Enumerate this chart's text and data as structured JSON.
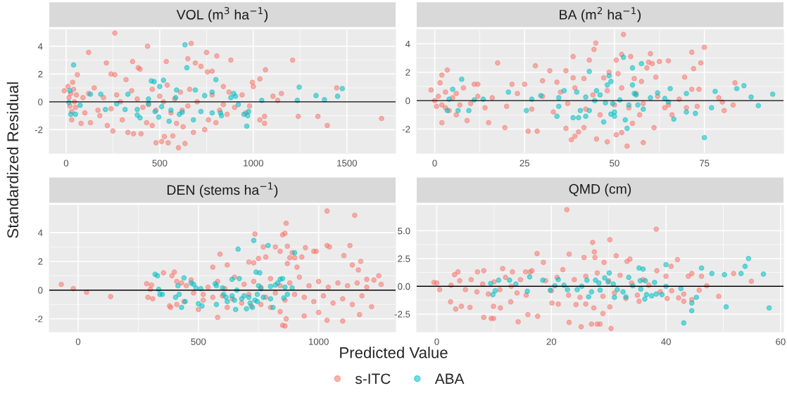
{
  "chart_data": [
    {
      "type": "scatter",
      "title": "VOL (m$^{3}$ ha$^{−1}$)",
      "ylabel": "Standardized Residual",
      "legend": "bottom",
      "grid": true,
      "marker": "circle",
      "xlim": [
        -90,
        1760
      ],
      "ylim": [
        -3.7,
        5.2
      ],
      "xticks": [
        0,
        500,
        1000,
        1500
      ],
      "yticks": [
        -2,
        0,
        2,
        4
      ],
      "ref_lines": [
        {
          "axis": "y",
          "value": 0,
          "color": "#000000"
        }
      ],
      "series": [
        {
          "name": "s-ITC",
          "color": "#f8766d",
          "x": [
            260,
            435,
            668,
            120,
            750,
            805,
            880,
            1210,
            535,
            355,
            650,
            690,
            720,
            1065,
            385,
            395,
            215,
            60,
            240,
            260,
            755,
            780,
            1035,
            995,
            1000,
            1240,
            1345,
            1395,
            1685,
            1445,
            1105,
            1150,
            1130,
            1060,
            1060,
            1035,
            980,
            840,
            870,
            600,
            635,
            480,
            510,
            545,
            570,
            525,
            250,
            330,
            360,
            400,
            460,
            220,
            130,
            80,
            30,
            740,
            680,
            625,
            590,
            430,
            300,
            180,
            200,
            150,
            170,
            270,
            320,
            350,
            410,
            460,
            500,
            540,
            560,
            610,
            650,
            700,
            780,
            820,
            860,
            900,
            940,
            960,
            15,
            20,
            25,
            30,
            40,
            45,
            10,
            50,
            35,
            55,
            -10,
            90,
            100,
            120,
            240,
            290,
            380,
            440,
            480,
            520,
            580,
            620,
            660,
            720,
            760,
            800,
            840
          ],
          "values": [
            4.95,
            4.0,
            4.2,
            3.55,
            3.55,
            3.3,
            3.0,
            3.0,
            2.9,
            2.9,
            3.1,
            2.8,
            2.55,
            2.3,
            2.45,
            2.35,
            2.8,
            1.95,
            2.0,
            1.95,
            2.15,
            2.2,
            1.65,
            1.4,
            1.1,
            -1.05,
            -1.05,
            -1.7,
            -1.2,
            1.0,
            0.4,
            0.6,
            0.1,
            -1.55,
            -1.05,
            -1.3,
            -0.3,
            1.1,
            0.7,
            -3.3,
            -3.0,
            -2.95,
            -2.85,
            -2.95,
            -2.45,
            -2.5,
            -2.1,
            -2.2,
            -2.3,
            -2.3,
            -1.7,
            -1.7,
            -1.5,
            -1.55,
            -1.3,
            -2.0,
            -2.2,
            -1.8,
            -1.55,
            -1.5,
            -1.3,
            -1.0,
            0.3,
            1.0,
            -0.6,
            0.5,
            1.6,
            0.8,
            -0.4,
            0.9,
            0.4,
            1.2,
            -0.8,
            0.7,
            -0.3,
            0.0,
            0.5,
            -0.6,
            -0.9,
            -0.4,
            0.5,
            -0.8,
            0.3,
            -0.3,
            0.6,
            -0.7,
            0.9,
            0.0,
            1.1,
            -0.4,
            1.4,
            0.5,
            0.8,
            0.3,
            -0.8,
            0.6,
            -0.5,
            0.0,
            0.2,
            -0.2,
            -0.6,
            0.0,
            0.2,
            -0.6,
            0.9,
            null,
            -1.3,
            -1.5,
            -0.2
          ]
        },
        {
          "name": "ABA",
          "color": "#00bfc4",
          "x": [
            40,
            635,
            645,
            520,
            455,
            470,
            500,
            800,
            1245,
            1475,
            1335,
            1450,
            1380,
            1235,
            1045,
            895,
            880,
            905,
            920,
            975,
            970,
            965,
            950,
            780,
            740,
            690,
            590,
            585,
            440,
            330,
            130,
            185,
            20,
            25,
            50,
            75,
            15,
            210,
            315,
            380,
            395,
            475,
            495,
            550,
            560,
            605,
            620,
            680,
            720,
            780,
            830,
            825,
            270,
            380,
            440,
            510
          ],
          "values": [
            2.65,
            4.1,
            2.45,
            1.55,
            1.5,
            1.45,
            1.1,
            1.6,
            1.05,
            0.95,
            0.45,
            0.4,
            0.15,
            0.1,
            0.1,
            0.6,
            0.3,
            0.4,
            -0.2,
            -0.7,
            -1.0,
            -1.75,
            -0.9,
            0.7,
            0.45,
            0.85,
            0.85,
            0.3,
            0.2,
            0.55,
            0.55,
            0.55,
            0.8,
            -0.9,
            -0.9,
            -0.25,
            -0.05,
            -0.55,
            -0.55,
            -0.95,
            -1.15,
            -0.7,
            -1.1,
            -1.4,
            -0.6,
            -0.9,
            -0.75,
            -1.3,
            -0.7,
            -0.8,
            -1.0,
            -0.8,
            -0.15,
            -0.55,
            -0.15,
            -0.35
          ]
        }
      ]
    },
    {
      "type": "scatter",
      "title": "BA (m$^{2}$ ha$^{−1}$)",
      "grid": true,
      "marker": "circle",
      "xlim": [
        -5,
        97
      ],
      "ylim": [
        -3.7,
        5.0
      ],
      "xticks": [
        0,
        25,
        50,
        75
      ],
      "yticks": [
        -2,
        0,
        2,
        4
      ],
      "ref_lines": [
        {
          "axis": "y",
          "value": 0,
          "color": "#000000"
        }
      ],
      "series": [
        {
          "name": "s-ITC",
          "color": "#f8766d",
          "x": [
            52.5,
            44.8,
            44.3,
            38.5,
            54.5,
            52,
            43,
            50.5,
            60,
            71.5,
            75,
            74,
            72,
            59.5,
            62.5,
            65,
            60.5,
            59,
            17.5,
            28,
            32,
            36.5,
            3.5,
            2,
            8,
            11,
            12,
            21.5,
            25,
            30,
            34,
            38.5,
            41.5,
            47,
            48.5,
            51,
            55.5,
            57.5,
            61.5,
            69.5,
            71.5,
            73.5,
            83.5,
            79,
            80,
            80.5,
            83,
            68,
            70,
            73,
            66,
            64,
            61,
            58,
            53.5,
            48,
            45,
            38,
            39,
            40,
            36.5,
            41.5,
            50.5,
            52,
            55,
            57,
            26,
            28.5,
            19.5,
            15,
            2,
            9,
            6,
            1,
            2,
            3,
            4,
            5,
            1.5,
            6,
            7,
            10,
            12,
            14,
            16,
            20,
            23,
            27,
            30,
            33,
            35,
            37,
            39,
            42,
            44,
            46,
            48,
            50,
            52,
            54,
            56,
            58,
            62,
            65,
            0,
            -1,
            3,
            0.5
          ],
          "values": [
            4.65,
            4.05,
            3.6,
            3.1,
            3.1,
            3.25,
            2.85,
            2.85,
            3.3,
            3.4,
            3.75,
            2.65,
            2.25,
            2.7,
            2.75,
            2.8,
            2.6,
            2.3,
            2.65,
            2.45,
            2.1,
            2.1,
            2.15,
            1.8,
            0.9,
            1.15,
            1.15,
            1.15,
            1.15,
            1.4,
            1.3,
            1.6,
            1.55,
            1.6,
            2.0,
            1.9,
            1.55,
            1.35,
            1.65,
            1.65,
            0.8,
            0.8,
            1.25,
            0.2,
            -0.1,
            -0.7,
            -0.3,
            0.1,
            -0.5,
            -0.4,
            -1.0,
            -0.5,
            -1.9,
            -2.95,
            -3.2,
            -2.9,
            -2.7,
            -2.75,
            -2.5,
            -2.2,
            -1.95,
            -1.9,
            -2.4,
            -2.25,
            -1.6,
            -1.0,
            -2.15,
            -2.15,
            -1.9,
            -1.55,
            -1.55,
            -1.4,
            -1.0,
            0.3,
            -0.3,
            0.6,
            -0.7,
            0.2,
            1.25,
            0.5,
            -0.3,
            -0.2,
            0.3,
            -0.5,
            0.2,
            -0.4,
            0.5,
            -0.6,
            0.3,
            -0.8,
            0.6,
            -0.2,
            0.9,
            -0.6,
            0.4,
            -1.0,
            0.7,
            -0.3,
            0.9,
            -0.5,
            0.5,
            -0.2,
            0.3,
            -0.3,
            0.0,
            0.75,
            -0.5,
            -0.4
          ]
        },
        {
          "name": "ABA",
          "color": "#00bfc4",
          "x": [
            7.5,
            5,
            4,
            3.5,
            6.5,
            9.5,
            11,
            13.5,
            20.5,
            27,
            29.5,
            25.5,
            34,
            34.5,
            34.5,
            36,
            38.5,
            40,
            39.5,
            40.5,
            43,
            42,
            42,
            43,
            45,
            44.5,
            46,
            47,
            47.5,
            48,
            48.5,
            49,
            49,
            49.5,
            50,
            50,
            51.5,
            52.5,
            53,
            53.5,
            54,
            55,
            55,
            55.5,
            56,
            56.5,
            57.5,
            58,
            60,
            62,
            64,
            65.5,
            66.5,
            70,
            70,
            72.5,
            75,
            77,
            78,
            84,
            86,
            88,
            90,
            94,
            65
          ],
          "values": [
            1.5,
            0.8,
            0.1,
            -0.7,
            -0.7,
            -0.7,
            0.05,
            0.1,
            0.6,
            0.1,
            0.35,
            -0.7,
            -1.1,
            0.2,
            -0.4,
            0.7,
            -1.2,
            -1.2,
            0.6,
            -0.7,
            2.05,
            0.25,
            -1.1,
            -0.7,
            0.7,
            0.0,
            0.4,
            -1.5,
            -0.15,
            1.1,
            1.75,
            1.35,
            -0.95,
            -0.2,
            -1.1,
            -0.8,
            0.05,
            3.05,
            -1.35,
            -1.95,
            -0.3,
            2.3,
            1.1,
            0.5,
            0.4,
            -0.3,
            2.6,
            -0.6,
            0.2,
            0.55,
            0.15,
            0.85,
            -1.3,
            0.5,
            -0.8,
            -0.9,
            -2.6,
            -0.5,
            0.65,
            0.85,
            1.05,
            0.25,
            -0.35,
            0.45,
            -0.1
          ]
        }
      ]
    },
    {
      "type": "scatter",
      "title": "DEN (stems ha$^{−1}$)",
      "xlabel": "Predicted Value",
      "grid": true,
      "marker": "circle",
      "xlim": [
        -120,
        1320
      ],
      "ylim": [
        -2.9,
        5.9
      ],
      "xticks": [
        0,
        500,
        1000
      ],
      "yticks": [
        -2,
        0,
        2,
        4
      ],
      "ref_lines": [
        {
          "axis": "y",
          "value": 0,
          "color": "#000000"
        }
      ],
      "series": [
        {
          "name": "s-ITC",
          "color": "#f8766d",
          "x": [
            -70,
            -20,
            35,
            135,
            285,
            300,
            305,
            290,
            310,
            355,
            390,
            400,
            410,
            380,
            385,
            410,
            440,
            500,
            520,
            560,
            590,
            620,
            580,
            620,
            735,
            710,
            730,
            750,
            770,
            780,
            820,
            840,
            850,
            860,
            865,
            870,
            870,
            880,
            890,
            900,
            910,
            945,
            930,
            980,
            990,
            1035,
            1035,
            1045,
            1105,
            1130,
            1150,
            1140,
            1175,
            1165,
            1200,
            1230,
            1250,
            1260,
            1220,
            1170,
            1100,
            1035,
            1000,
            940,
            850,
            860,
            865,
            840,
            800,
            760,
            720,
            680,
            640,
            600,
            560,
            520,
            480,
            450,
            430,
            470,
            540,
            580,
            610,
            650,
            690,
            710,
            730,
            760,
            780,
            800,
            820,
            840,
            860,
            880,
            900,
            920,
            940,
            960,
            980,
            1000,
            1020,
            1040,
            1060,
            1080,
            1100,
            1120,
            1140,
            1160,
            1180,
            1200
          ],
          "values": [
            0.4,
            0.1,
            -0.15,
            -0.45,
            0.45,
            0.05,
            0.35,
            -0.5,
            -0.6,
            1.2,
            1.0,
            1.25,
            0.6,
            -1.1,
            -1.2,
            -1.0,
            -0.8,
            -1.35,
            -0.7,
            1.6,
            2.5,
            1.75,
            -1.9,
            -1.2,
            3.9,
            1.95,
            1.9,
            2.2,
            3.0,
            2.3,
            3.0,
            2.7,
            3.85,
            3.95,
            4.65,
            3.05,
            1.85,
            2.25,
            2.6,
            2.25,
            1.6,
            2.95,
            2.3,
            2.7,
            2.7,
            5.5,
            3.1,
            3.0,
            2.4,
            3.1,
            5.2,
            1.75,
            2.0,
            1.4,
            0.75,
            0.7,
            1.0,
            0.4,
            -1.15,
            -1.7,
            -2.15,
            -2.1,
            -1.55,
            -1.8,
            -2.45,
            -2.5,
            -2.0,
            -1.5,
            -1.2,
            -1.0,
            -1.1,
            -0.9,
            -0.6,
            -0.4,
            -0.5,
            -0.3,
            -0.2,
            0.3,
            0.5,
            0.7,
            0.2,
            0.6,
            0.1,
            0.9,
            0.4,
            -0.3,
            0.6,
            0.2,
            -0.5,
            0.8,
            -0.2,
            0.3,
            -0.7,
            0.5,
            -0.3,
            0.9,
            -0.5,
            0.3,
            -0.8,
            0.6,
            -0.4,
            0.2,
            -0.9,
            0.5,
            -0.6,
            0.3,
            -1.0,
            0.5,
            -0.4,
            0.2
          ]
        },
        {
          "name": "ABA",
          "color": "#00bfc4",
          "x": [
            320,
            330,
            335,
            340,
            350,
            405,
            415,
            420,
            430,
            440,
            445,
            470,
            480,
            490,
            500,
            510,
            515,
            570,
            575,
            575,
            600,
            605,
            615,
            640,
            640,
            650,
            655,
            660,
            665,
            670,
            680,
            690,
            700,
            710,
            715,
            730,
            735,
            740,
            745,
            750,
            755,
            760,
            770,
            790,
            800,
            810,
            820,
            830,
            840,
            850,
            855,
            860,
            870,
            890,
            900,
            725,
            745,
            800,
            620
          ],
          "values": [
            1.1,
            1.0,
            0.05,
            -0.3,
            -0.3,
            -0.5,
            0.3,
            -0.3,
            -1.2,
            0.85,
            -0.8,
            0.5,
            0.4,
            0.15,
            -0.95,
            0.1,
            -1.1,
            0.45,
            0.3,
            -1.0,
            0.15,
            -0.3,
            -0.5,
            -0.4,
            0.75,
            -0.7,
            -1.35,
            0.0,
            2.85,
            0.8,
            -0.6,
            -0.4,
            -1.3,
            -0.5,
            -0.9,
            3.45,
            -0.7,
            1.25,
            -0.3,
            0.3,
            1.2,
            0.1,
            -0.5,
            3.1,
            0.25,
            -1.2,
            0.35,
            0.5,
            0.75,
            0.8,
            -0.55,
            0.2,
            -0.3,
            0.15,
            2.6,
            -1.2,
            -0.8,
            -0.6,
            -0.8
          ]
        }
      ]
    },
    {
      "type": "scatter",
      "title": "QMD (cm)",
      "grid": true,
      "marker": "circle",
      "xlim": [
        -3.5,
        60.5
      ],
      "ylim": [
        -4.1,
        7.3
      ],
      "xticks": [
        0,
        20,
        40,
        60
      ],
      "yticks": [
        {
          "value": -2.5,
          "label": "-2.5"
        },
        {
          "value": 0,
          "label": "0.0"
        },
        {
          "value": 2.5,
          "label": "2.5"
        },
        {
          "value": 5,
          "label": "5.0"
        }
      ],
      "ref_lines": [
        {
          "axis": "y",
          "value": 0,
          "color": "#000000"
        }
      ],
      "series": [
        {
          "name": "s-ITC",
          "color": "#f8766d",
          "x": [
            22.7,
            38.3,
            30.2,
            27.2,
            27.5,
            17.5,
            23.1,
            25.7,
            27.6,
            31.3,
            33.7,
            33.2,
            18.6,
            29.2,
            42,
            40.9,
            38.4,
            44.5,
            43.9,
            46.2,
            51.8,
            54.9,
            47.1,
            49.2,
            45.8,
            44.5,
            43.1,
            43.1,
            42.2,
            40.2,
            35.3,
            30.2,
            29,
            27.4,
            28,
            27,
            28.5,
            25.2,
            23.1,
            30.4,
            17.6,
            15.9,
            14.2,
            9.5,
            9.9,
            8.2,
            5.8,
            4.3,
            3.3,
            2.4,
            9.9,
            11.1,
            12.9,
            20.1,
            21.2,
            24.3,
            26,
            15.6,
            14.6,
            15.5,
            16.3,
            16.6,
            13.2,
            11.5,
            8.2,
            7.1,
            3.7,
            3.1,
            -0.5,
            0,
            0.5,
            2.5,
            4,
            5,
            6,
            7,
            8,
            9,
            10,
            11,
            12,
            13,
            14,
            19,
            20,
            21,
            22,
            23,
            24,
            25,
            26,
            27,
            28,
            29,
            30,
            31,
            32,
            33,
            34,
            35,
            36,
            37,
            39,
            40,
            41
          ],
          "values": [
            6.9,
            5.15,
            4.2,
            3.95,
            3.1,
            2.95,
            2.9,
            2.6,
            2.6,
            2.75,
            2.45,
            2.25,
            2.15,
            2.15,
            2.4,
            1.8,
            1.4,
            1.15,
            0.9,
            0.9,
            1.15,
            0.45,
            0.05,
            -0.9,
            -0.35,
            -1.2,
            -0.7,
            -1.35,
            -1.05,
            -1.1,
            -1.35,
            -1.85,
            -2.45,
            -1.95,
            -3.4,
            -3.4,
            -3.4,
            -3.65,
            -3.25,
            -3.8,
            -2.7,
            -2.55,
            -3.2,
            -2.9,
            -2.9,
            -2.8,
            -1.9,
            -1.8,
            -2.05,
            -1.4,
            -1.8,
            -1.95,
            -1.4,
            -1.5,
            -1.6,
            -1.65,
            -1.6,
            -0.8,
            0.6,
            1.3,
            1.3,
            1.4,
            1.3,
            1.6,
            1.4,
            1.3,
            1.3,
            1.05,
            0.35,
            0.3,
            -0.3,
            0.1,
            0.5,
            -0.3,
            0.6,
            -0.5,
            0.2,
            -0.7,
            0.4,
            -0.3,
            0.8,
            0.0,
            -0.6,
            0.5,
            -0.4,
            0.8,
            1.5,
            -0.8,
            0.6,
            -1.0,
            0.9,
            null,
            1.2,
            -0.9,
            0.5,
            -0.6,
            1.0,
            -1.1,
            0.3,
            -0.8,
            0.6,
            0.1,
            -0.5,
            0.9,
            -0.4
          ]
        },
        {
          "name": "ABA",
          "color": "#00bfc4",
          "x": [
            10.8,
            12.7,
            13.8,
            9.4,
            9.8,
            10.2,
            15.8,
            16.2,
            18.5,
            19.8,
            20.6,
            21.2,
            22.2,
            22.8,
            24.5,
            25.3,
            26.2,
            26.5,
            27,
            27.7,
            28.3,
            28.5,
            29.3,
            29.9,
            30.1,
            30.8,
            31.0,
            31.5,
            32.5,
            33,
            33.5,
            34.2,
            35.3,
            35.6,
            36,
            36.4,
            36.6,
            36.3,
            37.5,
            38.0,
            38.3,
            39.3,
            40,
            40,
            42.6,
            43.1,
            44.5,
            44.5,
            45.3,
            46.2,
            48,
            50.2,
            50.5,
            53.1,
            53.8,
            54.4,
            57,
            58,
            35.5
          ],
          "values": [
            0.55,
            0.55,
            0.2,
            0.25,
            -0.75,
            -0.4,
            -0.45,
            0.85,
            0.55,
            -0.35,
            0.05,
            0.6,
            0.1,
            -0.3,
            -0.3,
            0.0,
            0.55,
            -0.95,
            -0.5,
            0.55,
            0.3,
            -0.35,
            0.75,
            0.4,
            1.2,
            0.2,
            -1.0,
            -0.3,
            -0.5,
            -0.95,
            0.8,
            0.05,
            1.65,
            -0.25,
            1.55,
            0.5,
            -0.75,
            -1.15,
            -0.85,
            0.35,
            -0.7,
            -0.75,
            1.95,
            0.0,
            -0.2,
            -3.3,
            -1.5,
            -2.2,
            -1.0,
            1.65,
            1.15,
            1.05,
            -1.85,
            1.15,
            1.8,
            2.5,
            1.1,
            -1.95,
            0.5
          ]
        }
      ]
    }
  ]
}
